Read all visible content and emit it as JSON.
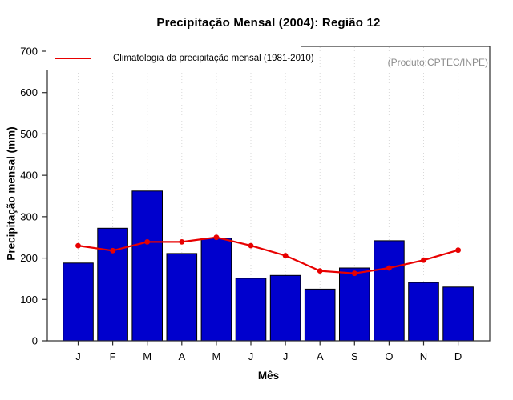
{
  "chart_data": {
    "type": "bar",
    "title": "Precipitação Mensal (2004): Região 12",
    "xlabel": "Mês",
    "ylabel": "Precipitação mensal (mm)",
    "annotation": "(Produto:CPTEC/INPE)",
    "categories": [
      "J",
      "F",
      "M",
      "A",
      "M",
      "J",
      "J",
      "A",
      "S",
      "O",
      "N",
      "D"
    ],
    "series": [
      {
        "name": "Precipitação Mensal (2004)",
        "type": "bar",
        "color": "#0000CD",
        "values": [
          188,
          272,
          362,
          211,
          248,
          151,
          158,
          125,
          176,
          242,
          141,
          130
        ]
      },
      {
        "name": "Climatologia da precipitação mensal (1981-2010)",
        "type": "line",
        "color": "#E80000",
        "values": [
          230,
          218,
          239,
          239,
          250,
          230,
          206,
          169,
          163,
          176,
          195,
          219
        ]
      }
    ],
    "ylim": [
      0,
      700
    ],
    "y_ticks": [
      0,
      100,
      200,
      300,
      400,
      500,
      600,
      700
    ],
    "grid": "vertical-dotted",
    "legend_position": "top-left",
    "colors": {
      "bar_fill": "#0000CD",
      "bar_border": "#000000",
      "line": "#E80000",
      "grid": "#d9d9d9",
      "axis": "#2b2b2b",
      "annotation_text": "#8c8c8c"
    }
  }
}
